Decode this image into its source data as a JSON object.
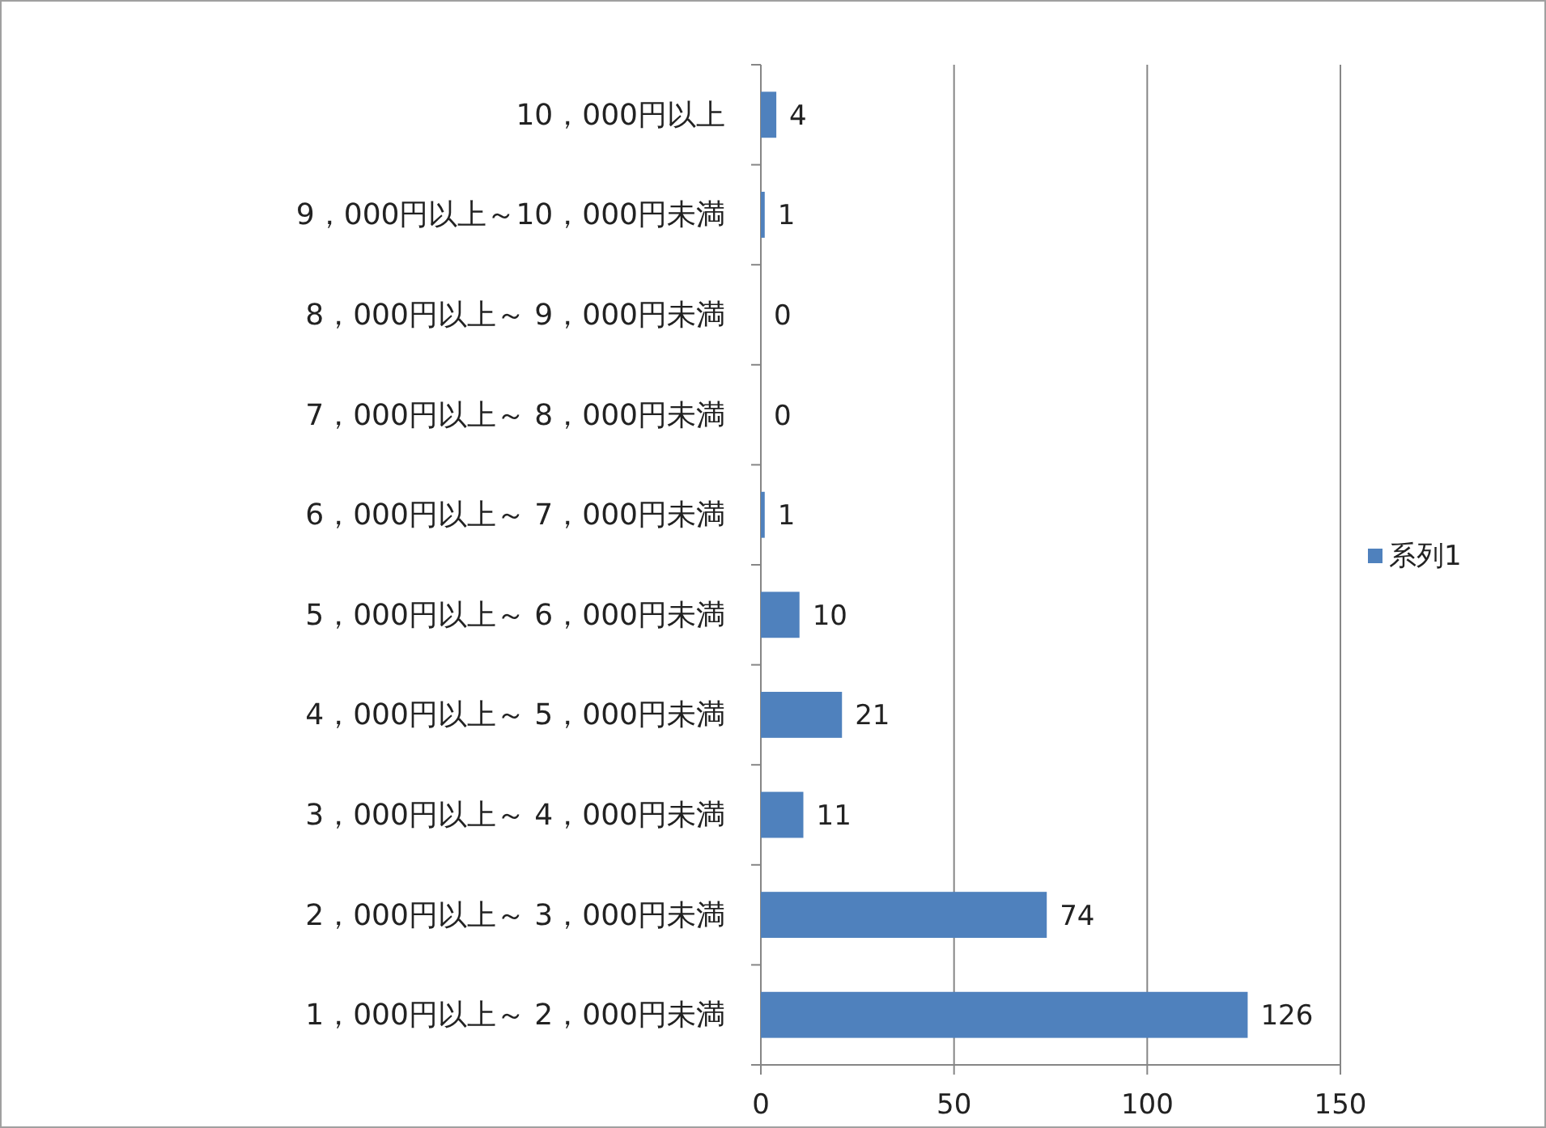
{
  "chart_data": {
    "type": "bar",
    "orientation": "horizontal",
    "categories": [
      "10，000円以上",
      "9，000円以上～10，000円未満",
      "8，000円以上～ 9，000円未満",
      "7，000円以上～ 8，000円未満",
      "6，000円以上～ 7，000円未満",
      "5，000円以上～ 6，000円未満",
      "4，000円以上～ 5，000円未満",
      "3，000円以上～ 4，000円未満",
      "2，000円以上～ 3，000円未満",
      "1，000円以上～ 2，000円未満"
    ],
    "series": [
      {
        "name": "系列1",
        "color": "#4f81bd",
        "values": [
          4,
          1,
          0,
          0,
          1,
          10,
          21,
          11,
          74,
          126
        ]
      }
    ],
    "xlim": [
      0,
      150
    ],
    "xticks": [
      0,
      50,
      100,
      150
    ],
    "grid": "x",
    "legend": "right",
    "data_labels": true
  }
}
